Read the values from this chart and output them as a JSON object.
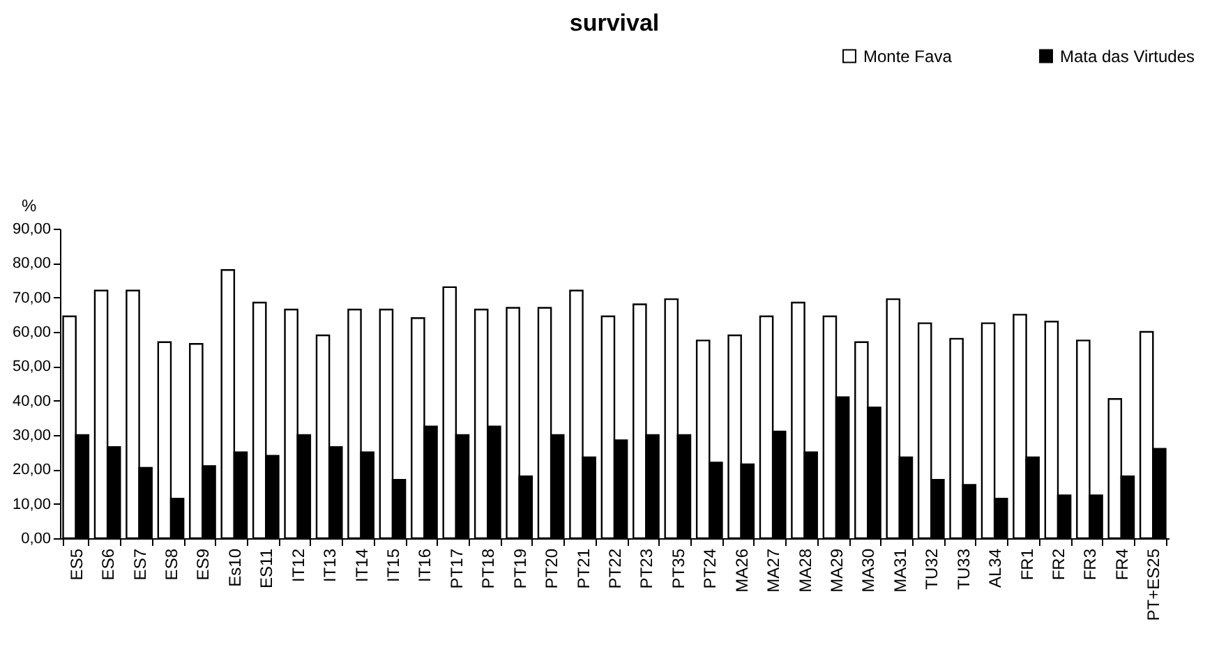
{
  "chart_data": {
    "type": "bar",
    "title": "survival",
    "ylabel": "%",
    "categories": [
      "ES5",
      "ES6",
      "ES7",
      "ES8",
      "ES9",
      "Es10",
      "ES11",
      "IT12",
      "IT13",
      "IT14",
      "IT15",
      "IT16",
      "PT17",
      "PT18",
      "PT19",
      "PT20",
      "PT21",
      "PT22",
      "PT23",
      "PT35",
      "PT24",
      "MA26",
      "MA27",
      "MA28",
      "MA29",
      "MA30",
      "MA31",
      "TU32",
      "TU33",
      "AL34",
      "FR1",
      "FR2",
      "FR3",
      "FR4",
      "PT+ES25"
    ],
    "series": [
      {
        "name": "Monte Fava",
        "color": "#ffffff",
        "values": [
          64.5,
          72,
          72,
          57,
          56.5,
          78,
          68.5,
          66.5,
          59,
          66.5,
          66.5,
          64,
          73,
          66.5,
          67,
          67,
          72,
          64.5,
          68,
          69.5,
          57.5,
          59,
          64.5,
          68.5,
          64.5,
          57,
          69.5,
          62.5,
          58,
          62.5,
          65,
          63,
          57.5,
          40.5,
          60
        ]
      },
      {
        "name": "Mata das Virtudes",
        "color": "#000000",
        "values": [
          30,
          26.5,
          20.5,
          11.5,
          21,
          25,
          24,
          30,
          26.5,
          25,
          17,
          32.5,
          30,
          32.5,
          18,
          30,
          23.5,
          28.5,
          30,
          30,
          22,
          21.5,
          31,
          25,
          41,
          38,
          23.5,
          17,
          15.5,
          11.5,
          23.5,
          12.5,
          12.5,
          18,
          26
        ]
      }
    ],
    "ylim": [
      0,
      90
    ],
    "yticks": [
      {
        "value": 0,
        "label": "0,00"
      },
      {
        "value": 10,
        "label": "10,00"
      },
      {
        "value": 20,
        "label": "20,00"
      },
      {
        "value": 30,
        "label": "30,00"
      },
      {
        "value": 40,
        "label": "40,00"
      },
      {
        "value": 50,
        "label": "50,00"
      },
      {
        "value": 60,
        "label": "60,00"
      },
      {
        "value": 70,
        "label": "70,00"
      },
      {
        "value": 80,
        "label": "80,00"
      },
      {
        "value": 90,
        "label": "90,00"
      }
    ],
    "grid": false,
    "legend": "top right"
  }
}
